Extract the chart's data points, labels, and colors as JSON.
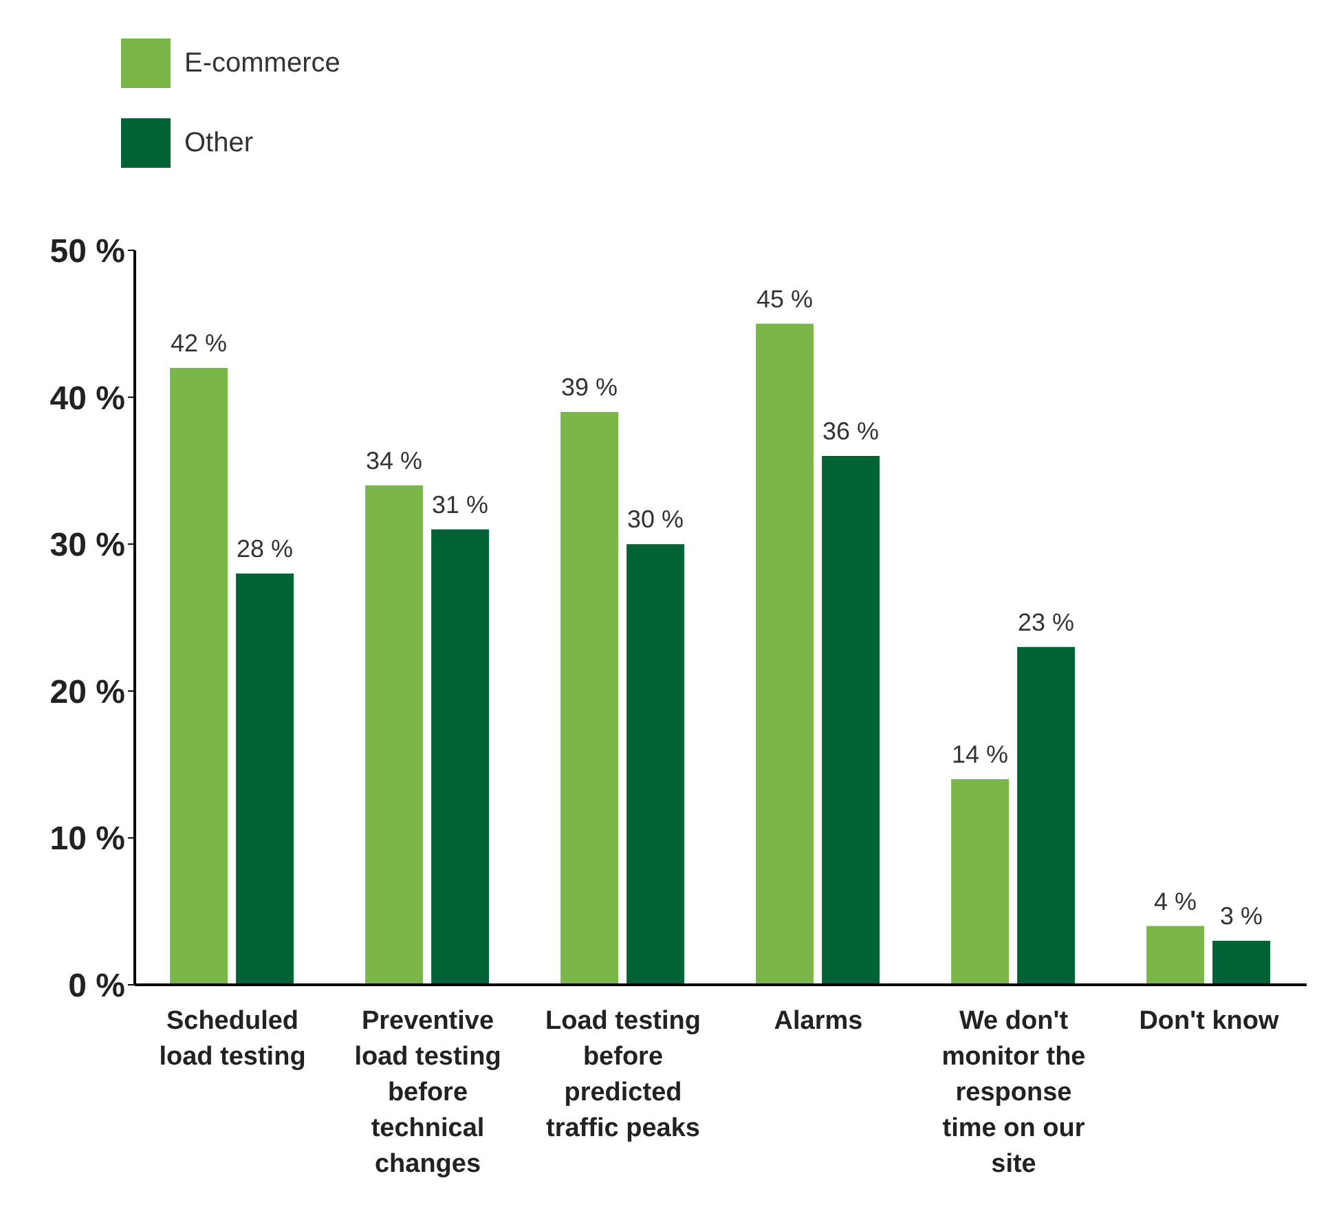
{
  "chart_data": {
    "type": "bar",
    "categories": [
      "Scheduled load testing",
      "Preventive load testing before technical changes",
      "Load testing before predicted traffic peaks",
      "Alarms",
      "We don't monitor the response time on our site",
      "Don't know"
    ],
    "series": [
      {
        "name": "E-commerce",
        "color": "#7ab648",
        "values": [
          42,
          34,
          39,
          45,
          14,
          4
        ],
        "value_labels": [
          "42 %",
          "34 %",
          "39 %",
          "45 %",
          "14 %",
          "4 %"
        ]
      },
      {
        "name": "Other",
        "color": "#006335",
        "values": [
          28,
          31,
          30,
          36,
          23,
          3
        ],
        "value_labels": [
          "28 %",
          "31 %",
          "30 %",
          "36 %",
          "23 %",
          "3 %"
        ]
      }
    ],
    "ylim": [
      0,
      50
    ],
    "yticks": [
      {
        "value": 0,
        "label": "0 %"
      },
      {
        "value": 10,
        "label": "10 %"
      },
      {
        "value": 20,
        "label": "20 %"
      },
      {
        "value": 30,
        "label": "30 %"
      },
      {
        "value": 40,
        "label": "40 %"
      },
      {
        "value": 50,
        "label": "50 %"
      }
    ],
    "legend": "top left",
    "grid": false
  }
}
